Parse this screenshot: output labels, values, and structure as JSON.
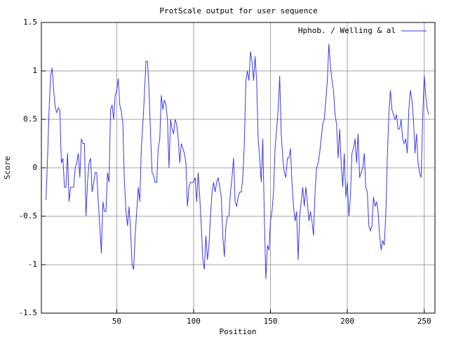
{
  "chart_data": {
    "type": "line",
    "title": "ProtScale output for user sequence",
    "xlabel": "Position",
    "ylabel": "Score",
    "x": [
      4,
      5,
      6,
      7,
      8,
      9,
      10,
      11,
      12,
      13,
      14,
      15,
      16,
      17,
      18,
      19,
      20,
      21,
      22,
      23,
      24,
      25,
      26,
      27,
      28,
      29,
      30,
      31,
      32,
      33,
      34,
      35,
      36,
      37,
      38,
      39,
      40,
      41,
      42,
      43,
      44,
      45,
      46,
      47,
      48,
      49,
      50,
      51,
      52,
      53,
      54,
      55,
      56,
      57,
      58,
      59,
      60,
      61,
      62,
      63,
      64,
      65,
      66,
      67,
      68,
      69,
      70,
      71,
      72,
      73,
      74,
      75,
      76,
      77,
      78,
      79,
      80,
      81,
      82,
      83,
      84,
      85,
      86,
      87,
      88,
      89,
      90,
      91,
      92,
      93,
      94,
      95,
      96,
      97,
      98,
      99,
      100,
      101,
      102,
      103,
      104,
      105,
      106,
      107,
      108,
      109,
      110,
      111,
      112,
      113,
      114,
      115,
      116,
      117,
      118,
      119,
      120,
      121,
      122,
      123,
      124,
      125,
      126,
      127,
      128,
      129,
      130,
      131,
      132,
      133,
      134,
      135,
      136,
      137,
      138,
      139,
      140,
      141,
      142,
      143,
      144,
      145,
      146,
      147,
      148,
      149,
      150,
      151,
      152,
      153,
      154,
      155,
      156,
      157,
      158,
      159,
      160,
      161,
      162,
      163,
      164,
      165,
      166,
      167,
      168,
      169,
      170,
      171,
      172,
      173,
      174,
      175,
      176,
      177,
      178,
      179,
      180,
      181,
      182,
      183,
      184,
      185,
      186,
      187,
      188,
      189,
      190,
      191,
      192,
      193,
      194,
      195,
      196,
      197,
      198,
      199,
      200,
      201,
      202,
      203,
      204,
      205,
      206,
      207,
      208,
      209,
      210,
      211,
      212,
      213,
      214,
      215,
      216,
      217,
      218,
      219,
      220,
      221,
      222,
      223,
      224,
      225,
      226,
      227,
      228,
      229,
      230,
      231,
      232,
      233,
      234,
      235,
      236,
      237,
      238,
      239,
      240,
      241,
      242,
      243,
      244,
      245,
      246,
      247,
      248,
      249,
      250,
      251,
      252,
      253
    ],
    "series": [
      {
        "name": "Hphob. / Welling & al",
        "color": "#3a3ae8",
        "values": [
          -0.33,
          0.1,
          0.6,
          0.95,
          1.03,
          0.8,
          0.62,
          0.57,
          0.62,
          0.6,
          0.05,
          0.1,
          -0.2,
          -0.2,
          0.15,
          -0.35,
          -0.2,
          -0.2,
          -0.2,
          0.0,
          0.05,
          0.15,
          -0.1,
          0.3,
          0.25,
          0.25,
          -0.5,
          -0.15,
          0.05,
          0.1,
          -0.25,
          -0.15,
          -0.05,
          -0.05,
          -0.35,
          -0.6,
          -0.88,
          -0.35,
          -0.45,
          -0.45,
          -0.05,
          -0.15,
          0.6,
          0.65,
          0.5,
          0.75,
          0.8,
          0.92,
          0.65,
          0.58,
          0.45,
          -0.15,
          -0.45,
          -0.6,
          -0.4,
          -0.65,
          -1.0,
          -1.05,
          -0.7,
          -0.45,
          -0.2,
          -0.35,
          0.2,
          0.45,
          0.75,
          1.1,
          1.1,
          0.8,
          0.35,
          -0.05,
          -0.08,
          -0.15,
          -0.15,
          0.2,
          0.3,
          0.75,
          0.6,
          0.7,
          0.65,
          0.5,
          0.0,
          0.5,
          0.4,
          0.35,
          0.5,
          0.45,
          0.3,
          0.05,
          0.25,
          0.2,
          0.15,
          0.05,
          -0.4,
          -0.2,
          -0.15,
          -0.15,
          -0.15,
          -0.1,
          -0.35,
          -0.05,
          -0.3,
          -0.6,
          -0.95,
          -1.05,
          -0.7,
          -0.95,
          -0.8,
          -0.5,
          -0.25,
          -0.15,
          -0.25,
          -0.15,
          -0.1,
          -0.2,
          -0.3,
          -0.7,
          -0.92,
          -0.6,
          -0.5,
          -0.5,
          -0.25,
          -0.1,
          0.1,
          -0.35,
          -0.4,
          -0.3,
          -0.25,
          -0.25,
          -0.1,
          0.25,
          0.9,
          1.0,
          0.9,
          1.2,
          1.1,
          0.9,
          1.15,
          0.9,
          0.3,
          0.1,
          -0.15,
          0.3,
          -0.5,
          -1.15,
          -0.8,
          -0.85,
          -0.55,
          -0.45,
          -0.25,
          0.2,
          0.4,
          0.6,
          0.95,
          0.35,
          0.1,
          -0.05,
          -0.1,
          0.1,
          0.1,
          0.2,
          -0.15,
          -0.4,
          -0.55,
          -0.45,
          -0.95,
          -0.5,
          -0.35,
          -0.2,
          -0.4,
          -0.2,
          -0.35,
          -0.55,
          -0.45,
          -0.55,
          -0.7,
          -0.25,
          0.0,
          0.05,
          0.15,
          0.3,
          0.45,
          0.5,
          0.7,
          0.9,
          1.28,
          1.05,
          0.9,
          0.8,
          0.55,
          0.45,
          0.1,
          0.4,
          0.05,
          -0.2,
          0.15,
          -0.3,
          -0.15,
          -0.5,
          -0.3,
          0.15,
          0.2,
          0.3,
          0.05,
          0.35,
          -0.1,
          -0.05,
          0.0,
          0.15,
          -0.2,
          -0.25,
          -0.6,
          -0.65,
          -0.6,
          -0.3,
          -0.4,
          -0.35,
          -0.45,
          -0.7,
          -0.85,
          -0.75,
          -0.8,
          -0.5,
          0.1,
          0.55,
          0.8,
          0.6,
          0.55,
          0.5,
          0.55,
          0.4,
          0.4,
          0.5,
          0.3,
          0.25,
          0.3,
          0.15,
          0.6,
          0.8,
          0.7,
          0.5,
          0.15,
          0.35,
          0.05,
          -0.05,
          -0.1,
          0.5,
          0.95,
          0.75,
          0.6,
          0.55
        ]
      }
    ],
    "xlim": [
      1,
      257
    ],
    "xticks": [
      50,
      100,
      150,
      200,
      250
    ],
    "ylim": [
      -1.5,
      1.5
    ],
    "yticks": [
      -1.5,
      -1,
      -0.5,
      0,
      0.5,
      1,
      1.5
    ],
    "grid": true,
    "legend": "top-right"
  }
}
